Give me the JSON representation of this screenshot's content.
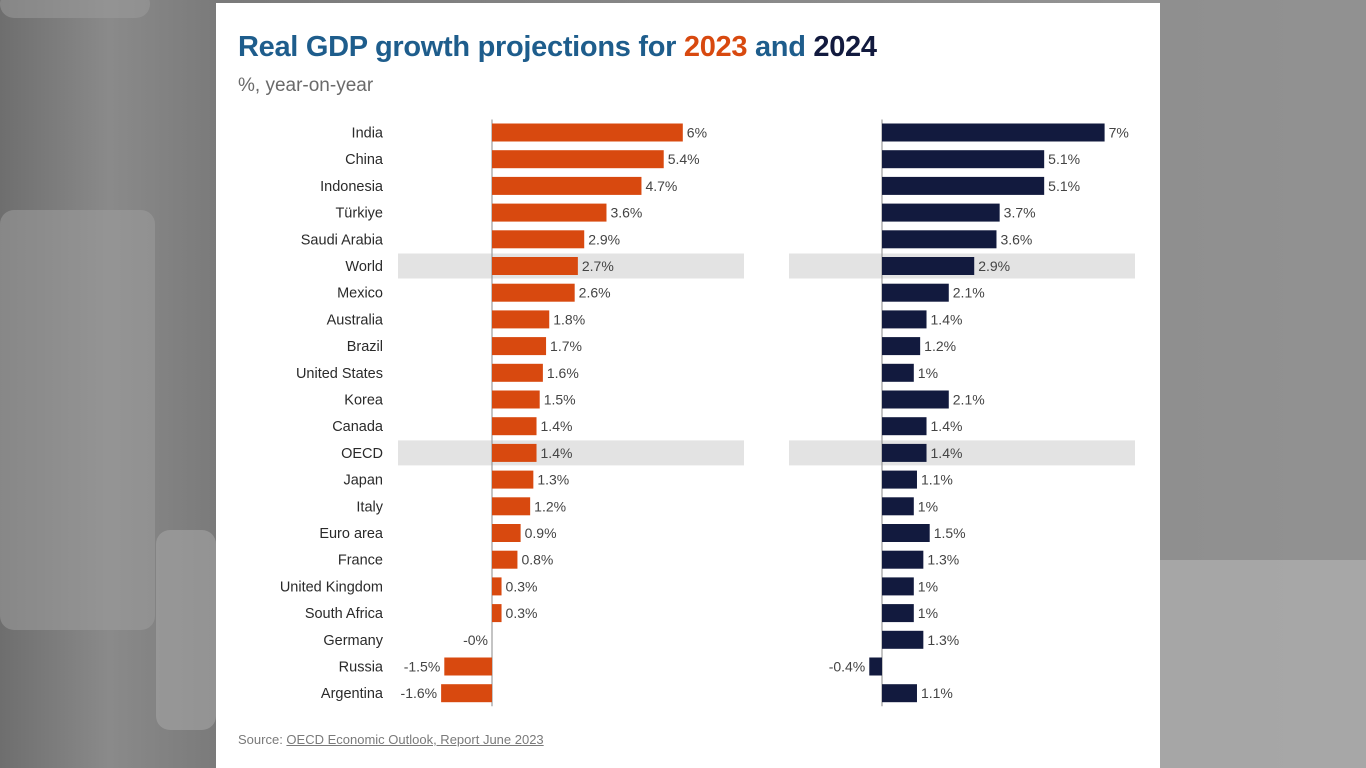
{
  "title": {
    "prefix": "Real GDP growth projections for ",
    "year1": "2023",
    "connector": " and ",
    "year2": "2024"
  },
  "subtitle": "%, year-on-year",
  "source": {
    "label": "Source: ",
    "link_text": "OECD Economic Outlook, Report June 2023"
  },
  "colors": {
    "series_2023": "#d8490f",
    "series_2024": "#121a3e",
    "highlight_band": "#e3e3e3",
    "title_blue": "#1e5d8c"
  },
  "chart_data": {
    "type": "bar",
    "orientation": "horizontal",
    "categories": [
      "India",
      "China",
      "Indonesia",
      "Türkiye",
      "Saudi Arabia",
      "World",
      "Mexico",
      "Australia",
      "Brazil",
      "United States",
      "Korea",
      "Canada",
      "OECD",
      "Japan",
      "Italy",
      "Euro area",
      "France",
      "United Kingdom",
      "South Africa",
      "Germany",
      "Russia",
      "Argentina"
    ],
    "highlighted": [
      "World",
      "OECD"
    ],
    "series": [
      {
        "name": "2023",
        "values": [
          6,
          5.4,
          4.7,
          3.6,
          2.9,
          2.7,
          2.6,
          1.8,
          1.7,
          1.6,
          1.5,
          1.4,
          1.4,
          1.3,
          1.2,
          0.9,
          0.8,
          0.3,
          0.3,
          0,
          -1.5,
          -1.6
        ],
        "labels": [
          "6%",
          "5.4%",
          "4.7%",
          "3.6%",
          "2.9%",
          "2.7%",
          "2.6%",
          "1.8%",
          "1.7%",
          "1.6%",
          "1.5%",
          "1.4%",
          "1.4%",
          "1.3%",
          "1.2%",
          "0.9%",
          "0.8%",
          "0.3%",
          "0.3%",
          "-0%",
          "-1.5%",
          "-1.6%"
        ]
      },
      {
        "name": "2024",
        "values": [
          7,
          5.1,
          5.1,
          3.7,
          3.6,
          2.9,
          2.1,
          1.4,
          1.2,
          1,
          2.1,
          1.4,
          1.4,
          1.1,
          1,
          1.5,
          1.3,
          1,
          1,
          1.3,
          -0.4,
          1.1
        ],
        "labels": [
          "7%",
          "5.1%",
          "5.1%",
          "3.7%",
          "3.6%",
          "2.9%",
          "2.1%",
          "1.4%",
          "1.2%",
          "1%",
          "2.1%",
          "1.4%",
          "1.4%",
          "1.1%",
          "1%",
          "1.5%",
          "1.3%",
          "1%",
          "1%",
          "1.3%",
          "-0.4%",
          "1.1%"
        ]
      }
    ],
    "unit": "%",
    "grid": false,
    "legend": "title"
  }
}
